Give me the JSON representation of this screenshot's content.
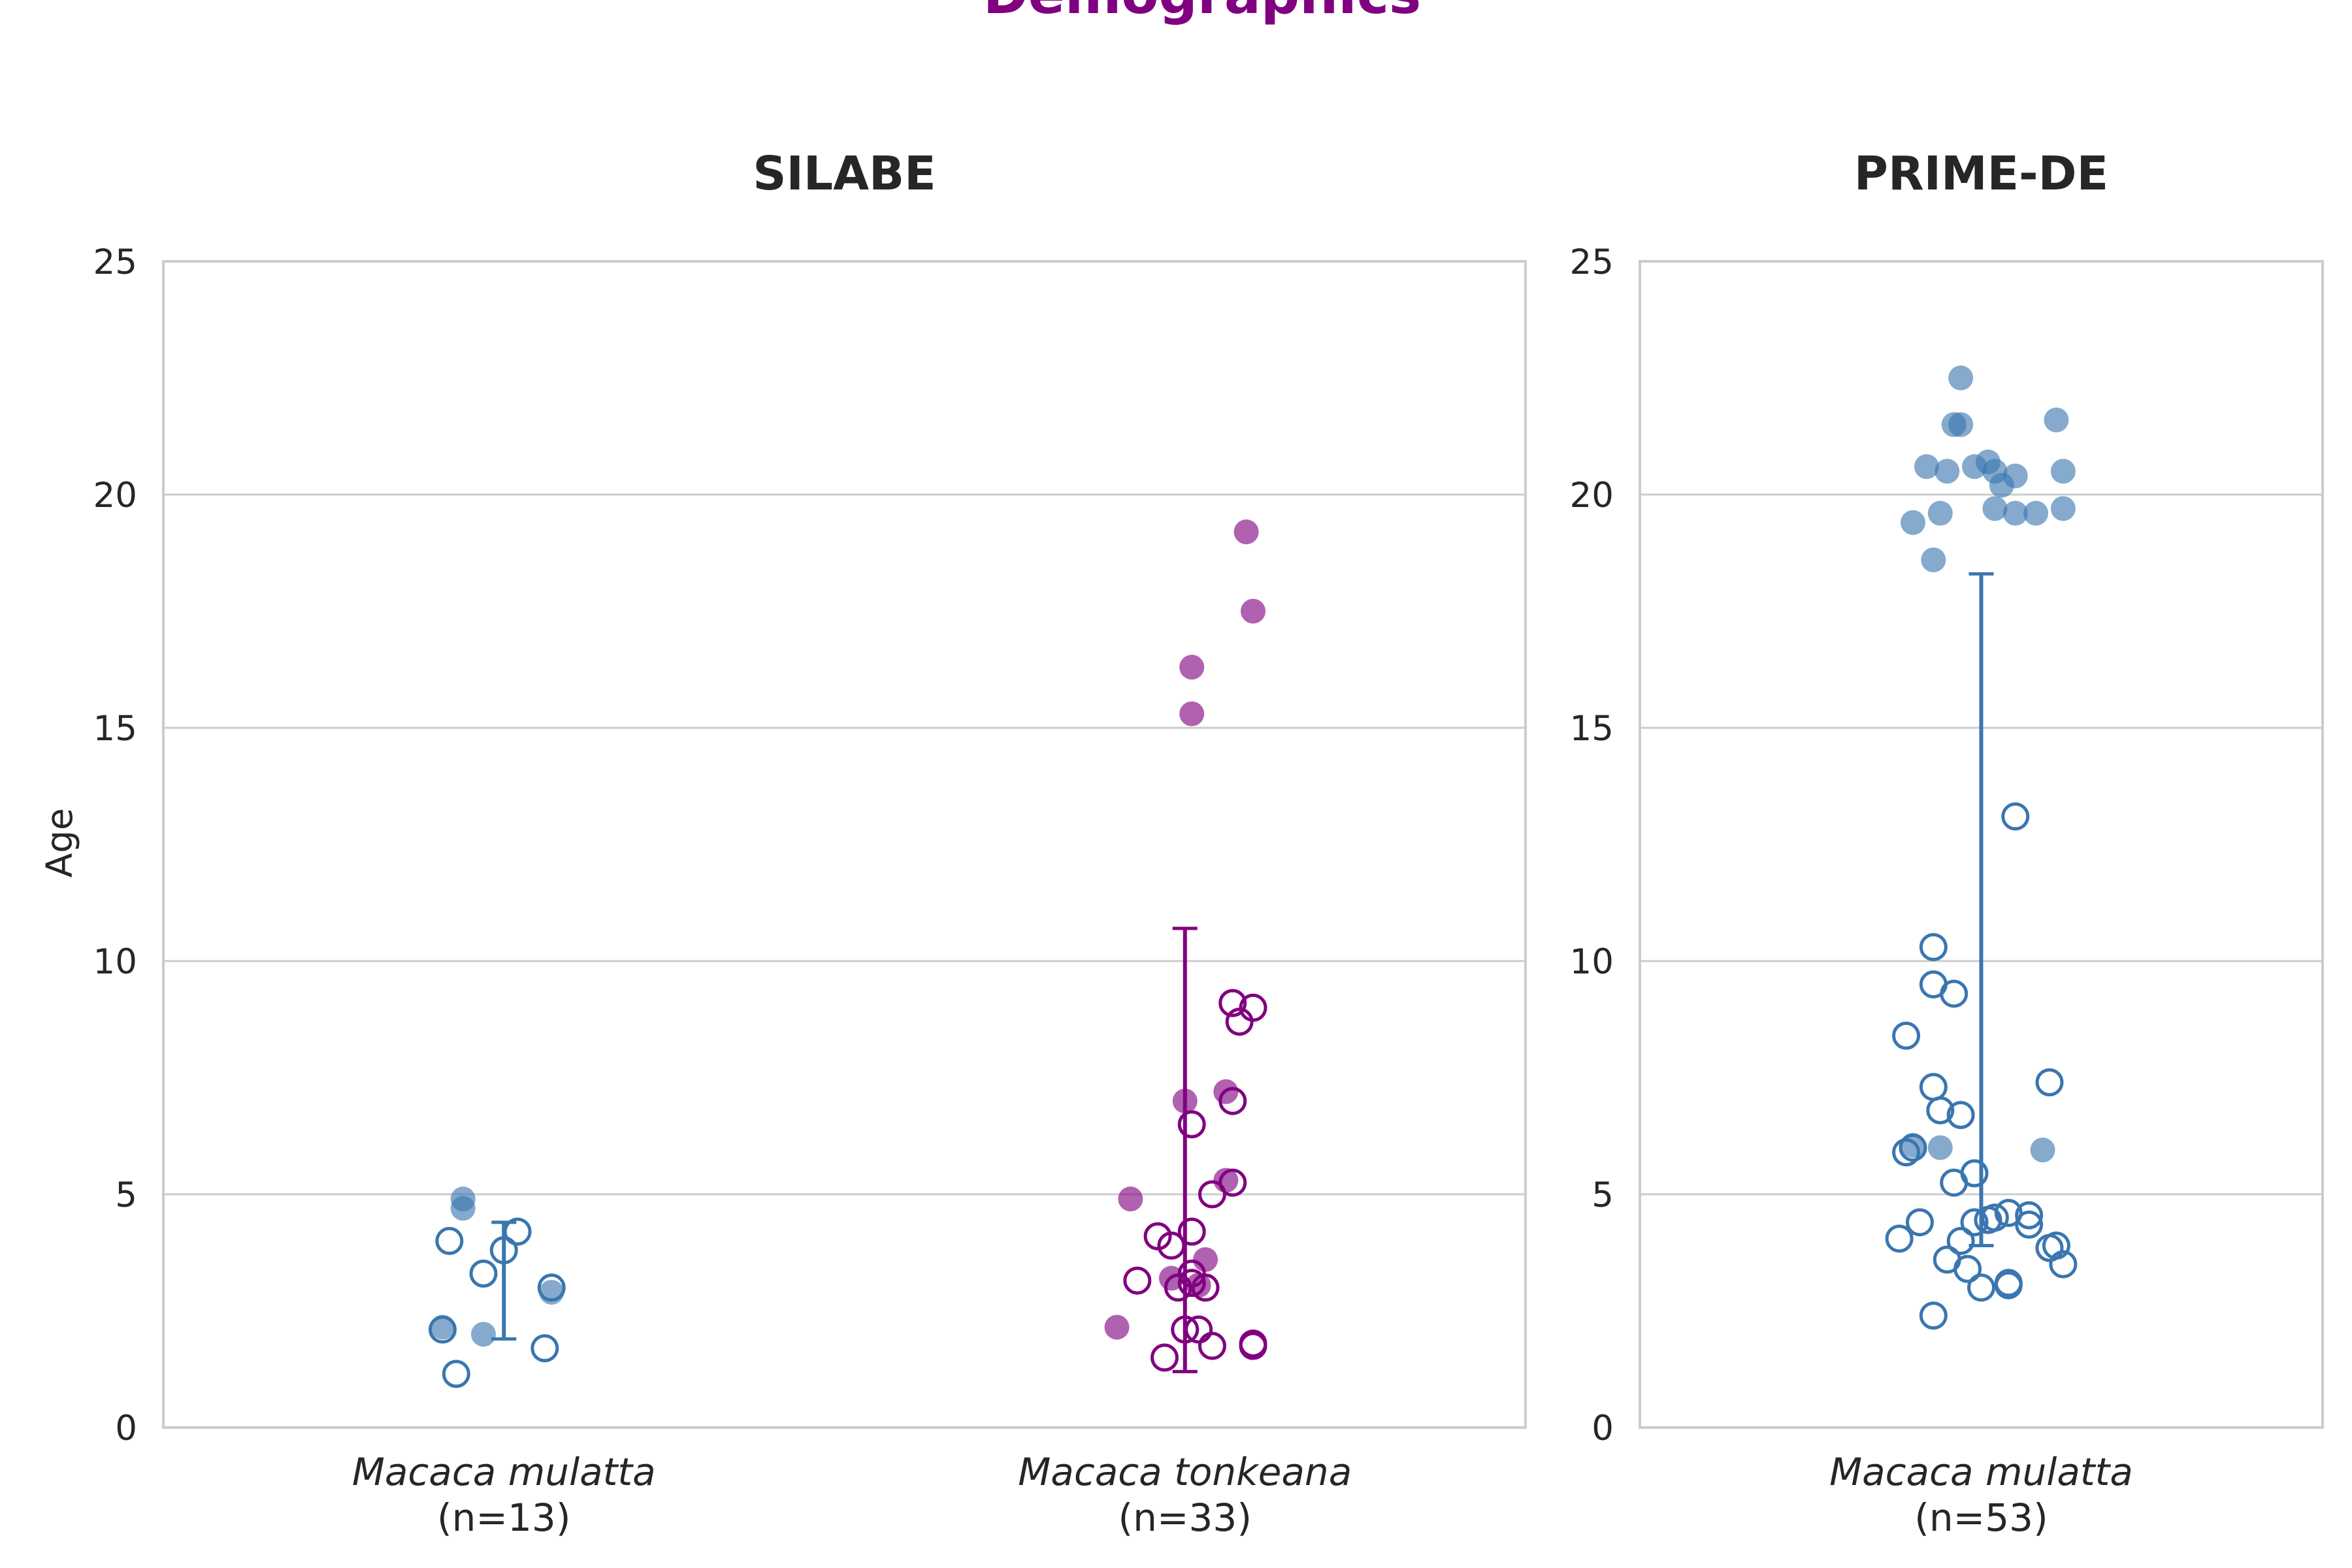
{
  "chart_data": {
    "type": "scatter",
    "title": "Demographics",
    "ylabel": "Age",
    "ylim": [
      0,
      25
    ],
    "yticks": [
      0,
      5,
      10,
      15,
      20,
      25
    ],
    "grid": true,
    "colors": {
      "Macaca mulatta": "#3a76af",
      "Macaca tonkeana": "#800080"
    },
    "marker_legend_note": "",
    "panels": [
      {
        "title": "SILABE",
        "categories": [
          {
            "name": "Macaca mulatta",
            "count_label": "(n=13)",
            "color": "#3a76af",
            "errorbar": [
              1.9,
              4.4
            ],
            "points": [
              {
                "y": 4.9,
                "filled": true,
                "jitter": -0.06
              },
              {
                "y": 4.7,
                "filled": true,
                "jitter": -0.06
              },
              {
                "y": 4.2,
                "filled": false,
                "jitter": 0.02
              },
              {
                "y": 4.0,
                "filled": false,
                "jitter": -0.08
              },
              {
                "y": 3.8,
                "filled": false,
                "jitter": 0.0
              },
              {
                "y": 3.3,
                "filled": false,
                "jitter": -0.03
              },
              {
                "y": 3.0,
                "filled": false,
                "jitter": 0.07
              },
              {
                "y": 2.9,
                "filled": true,
                "jitter": 0.07
              },
              {
                "y": 2.15,
                "filled": true,
                "jitter": -0.09
              },
              {
                "y": 2.1,
                "filled": false,
                "jitter": -0.09
              },
              {
                "y": 2.0,
                "filled": true,
                "jitter": -0.03
              },
              {
                "y": 1.7,
                "filled": false,
                "jitter": 0.06
              },
              {
                "y": 1.15,
                "filled": false,
                "jitter": -0.07
              }
            ]
          },
          {
            "name": "Macaca tonkeana",
            "count_label": "(n=33)",
            "color": "#800080",
            "errorbar": [
              1.2,
              10.7
            ],
            "points": [
              {
                "y": 19.2,
                "filled": true,
                "jitter": 0.09
              },
              {
                "y": 17.5,
                "filled": true,
                "jitter": 0.1
              },
              {
                "y": 16.3,
                "filled": true,
                "jitter": 0.01
              },
              {
                "y": 15.3,
                "filled": true,
                "jitter": 0.01
              },
              {
                "y": 9.1,
                "filled": false,
                "jitter": 0.07
              },
              {
                "y": 9.0,
                "filled": false,
                "jitter": 0.1
              },
              {
                "y": 8.7,
                "filled": false,
                "jitter": 0.08
              },
              {
                "y": 7.2,
                "filled": true,
                "jitter": 0.06
              },
              {
                "y": 7.0,
                "filled": true,
                "jitter": 0.0
              },
              {
                "y": 7.0,
                "filled": false,
                "jitter": 0.07
              },
              {
                "y": 6.5,
                "filled": false,
                "jitter": 0.01
              },
              {
                "y": 5.3,
                "filled": true,
                "jitter": 0.06
              },
              {
                "y": 5.25,
                "filled": false,
                "jitter": 0.07
              },
              {
                "y": 5.0,
                "filled": false,
                "jitter": 0.04
              },
              {
                "y": 4.9,
                "filled": true,
                "jitter": -0.08
              },
              {
                "y": 4.2,
                "filled": false,
                "jitter": 0.01
              },
              {
                "y": 4.1,
                "filled": false,
                "jitter": -0.04
              },
              {
                "y": 3.9,
                "filled": false,
                "jitter": -0.02
              },
              {
                "y": 3.6,
                "filled": true,
                "jitter": 0.03
              },
              {
                "y": 3.3,
                "filled": false,
                "jitter": 0.01
              },
              {
                "y": 3.2,
                "filled": true,
                "jitter": -0.02
              },
              {
                "y": 3.15,
                "filled": false,
                "jitter": -0.07
              },
              {
                "y": 3.1,
                "filled": false,
                "jitter": 0.01
              },
              {
                "y": 3.05,
                "filled": true,
                "jitter": 0.02
              },
              {
                "y": 3.0,
                "filled": false,
                "jitter": 0.03
              },
              {
                "y": 3.0,
                "filled": false,
                "jitter": -0.01
              },
              {
                "y": 2.15,
                "filled": true,
                "jitter": -0.1
              },
              {
                "y": 2.1,
                "filled": false,
                "jitter": 0.0
              },
              {
                "y": 2.1,
                "filled": false,
                "jitter": 0.02
              },
              {
                "y": 1.8,
                "filled": false,
                "jitter": 0.1
              },
              {
                "y": 1.75,
                "filled": false,
                "jitter": 0.04
              },
              {
                "y": 1.75,
                "filled": false,
                "jitter": 0.1
              },
              {
                "y": 1.5,
                "filled": false,
                "jitter": -0.03
              }
            ]
          }
        ]
      },
      {
        "title": "PRIME-DE",
        "categories": [
          {
            "name": "Macaca mulatta",
            "count_label": "(n=53)",
            "color": "#3a76af",
            "errorbar": [
              3.9,
              18.3
            ],
            "points": [
              {
                "y": 22.5,
                "filled": true,
                "jitter": -0.03
              },
              {
                "y": 21.6,
                "filled": true,
                "jitter": 0.11
              },
              {
                "y": 21.5,
                "filled": true,
                "jitter": -0.04
              },
              {
                "y": 21.5,
                "filled": true,
                "jitter": -0.03
              },
              {
                "y": 20.7,
                "filled": true,
                "jitter": 0.01
              },
              {
                "y": 20.6,
                "filled": true,
                "jitter": -0.08
              },
              {
                "y": 20.6,
                "filled": true,
                "jitter": -0.01
              },
              {
                "y": 20.5,
                "filled": true,
                "jitter": -0.05
              },
              {
                "y": 20.5,
                "filled": true,
                "jitter": 0.02
              },
              {
                "y": 20.5,
                "filled": true,
                "jitter": 0.12
              },
              {
                "y": 20.4,
                "filled": true,
                "jitter": 0.05
              },
              {
                "y": 20.2,
                "filled": true,
                "jitter": 0.03
              },
              {
                "y": 19.7,
                "filled": true,
                "jitter": 0.02
              },
              {
                "y": 19.7,
                "filled": true,
                "jitter": 0.12
              },
              {
                "y": 19.6,
                "filled": true,
                "jitter": -0.06
              },
              {
                "y": 19.6,
                "filled": true,
                "jitter": 0.05
              },
              {
                "y": 19.6,
                "filled": true,
                "jitter": 0.08
              },
              {
                "y": 19.4,
                "filled": true,
                "jitter": -0.1
              },
              {
                "y": 18.6,
                "filled": true,
                "jitter": -0.07
              },
              {
                "y": 13.1,
                "filled": false,
                "jitter": 0.05
              },
              {
                "y": 10.3,
                "filled": false,
                "jitter": -0.07
              },
              {
                "y": 9.5,
                "filled": false,
                "jitter": -0.07
              },
              {
                "y": 9.3,
                "filled": false,
                "jitter": -0.04
              },
              {
                "y": 8.4,
                "filled": false,
                "jitter": -0.11
              },
              {
                "y": 7.4,
                "filled": false,
                "jitter": 0.1
              },
              {
                "y": 7.3,
                "filled": false,
                "jitter": -0.07
              },
              {
                "y": 6.8,
                "filled": false,
                "jitter": -0.06
              },
              {
                "y": 6.7,
                "filled": false,
                "jitter": -0.03
              },
              {
                "y": 6.05,
                "filled": true,
                "jitter": -0.1
              },
              {
                "y": 6.0,
                "filled": true,
                "jitter": -0.06
              },
              {
                "y": 6.0,
                "filled": false,
                "jitter": -0.1
              },
              {
                "y": 5.95,
                "filled": true,
                "jitter": 0.09
              },
              {
                "y": 5.9,
                "filled": false,
                "jitter": -0.11
              },
              {
                "y": 5.45,
                "filled": false,
                "jitter": -0.01
              },
              {
                "y": 5.25,
                "filled": false,
                "jitter": -0.04
              },
              {
                "y": 4.6,
                "filled": false,
                "jitter": 0.04
              },
              {
                "y": 4.55,
                "filled": false,
                "jitter": 0.07
              },
              {
                "y": 4.5,
                "filled": false,
                "jitter": 0.02
              },
              {
                "y": 4.45,
                "filled": false,
                "jitter": 0.01
              },
              {
                "y": 4.4,
                "filled": false,
                "jitter": -0.01
              },
              {
                "y": 4.4,
                "filled": false,
                "jitter": -0.09
              },
              {
                "y": 4.35,
                "filled": false,
                "jitter": 0.07
              },
              {
                "y": 4.05,
                "filled": false,
                "jitter": -0.12
              },
              {
                "y": 4.0,
                "filled": false,
                "jitter": -0.03
              },
              {
                "y": 3.9,
                "filled": false,
                "jitter": 0.11
              },
              {
                "y": 3.85,
                "filled": false,
                "jitter": 0.1
              },
              {
                "y": 3.6,
                "filled": false,
                "jitter": -0.05
              },
              {
                "y": 3.5,
                "filled": false,
                "jitter": 0.12
              },
              {
                "y": 3.4,
                "filled": false,
                "jitter": -0.02
              },
              {
                "y": 3.1,
                "filled": false,
                "jitter": 0.04
              },
              {
                "y": 3.05,
                "filled": false,
                "jitter": 0.04
              },
              {
                "y": 3.0,
                "filled": false,
                "jitter": 0.0
              },
              {
                "y": 2.4,
                "filled": false,
                "jitter": -0.07
              }
            ]
          }
        ]
      }
    ]
  }
}
